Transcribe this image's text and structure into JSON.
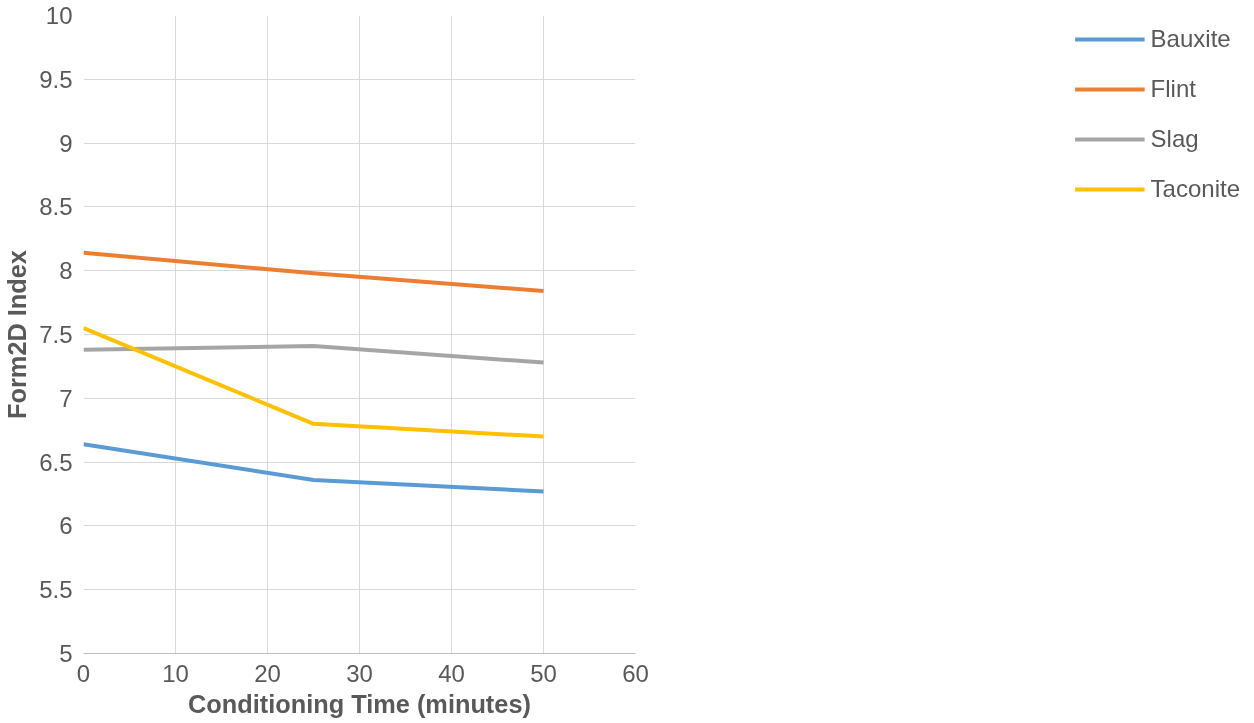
{
  "chart_data": {
    "type": "line",
    "xlabel": "Conditioning Time (minutes)",
    "ylabel": "Form2D Index",
    "x": [
      0,
      25,
      50
    ],
    "series": [
      {
        "name": "Bauxite",
        "color": "#5b9bd5",
        "values": [
          6.64,
          6.36,
          6.27
        ]
      },
      {
        "name": "Flint",
        "color": "#ed7d31",
        "values": [
          8.14,
          7.98,
          7.84
        ]
      },
      {
        "name": "Slag",
        "color": "#a5a5a5",
        "values": [
          7.38,
          7.41,
          7.28
        ]
      },
      {
        "name": "Taconite",
        "color": "#ffc000",
        "values": [
          7.55,
          6.8,
          6.7
        ]
      }
    ],
    "xlim": [
      0,
      60
    ],
    "xticks": [
      0,
      10,
      20,
      30,
      40,
      50,
      60
    ],
    "ylim": [
      5,
      10
    ],
    "yticks": [
      5,
      5.5,
      6,
      6.5,
      7,
      7.5,
      8,
      8.5,
      9,
      9.5,
      10
    ],
    "grid": true,
    "legend": "right",
    "marker": "none",
    "line_style": "solid"
  }
}
